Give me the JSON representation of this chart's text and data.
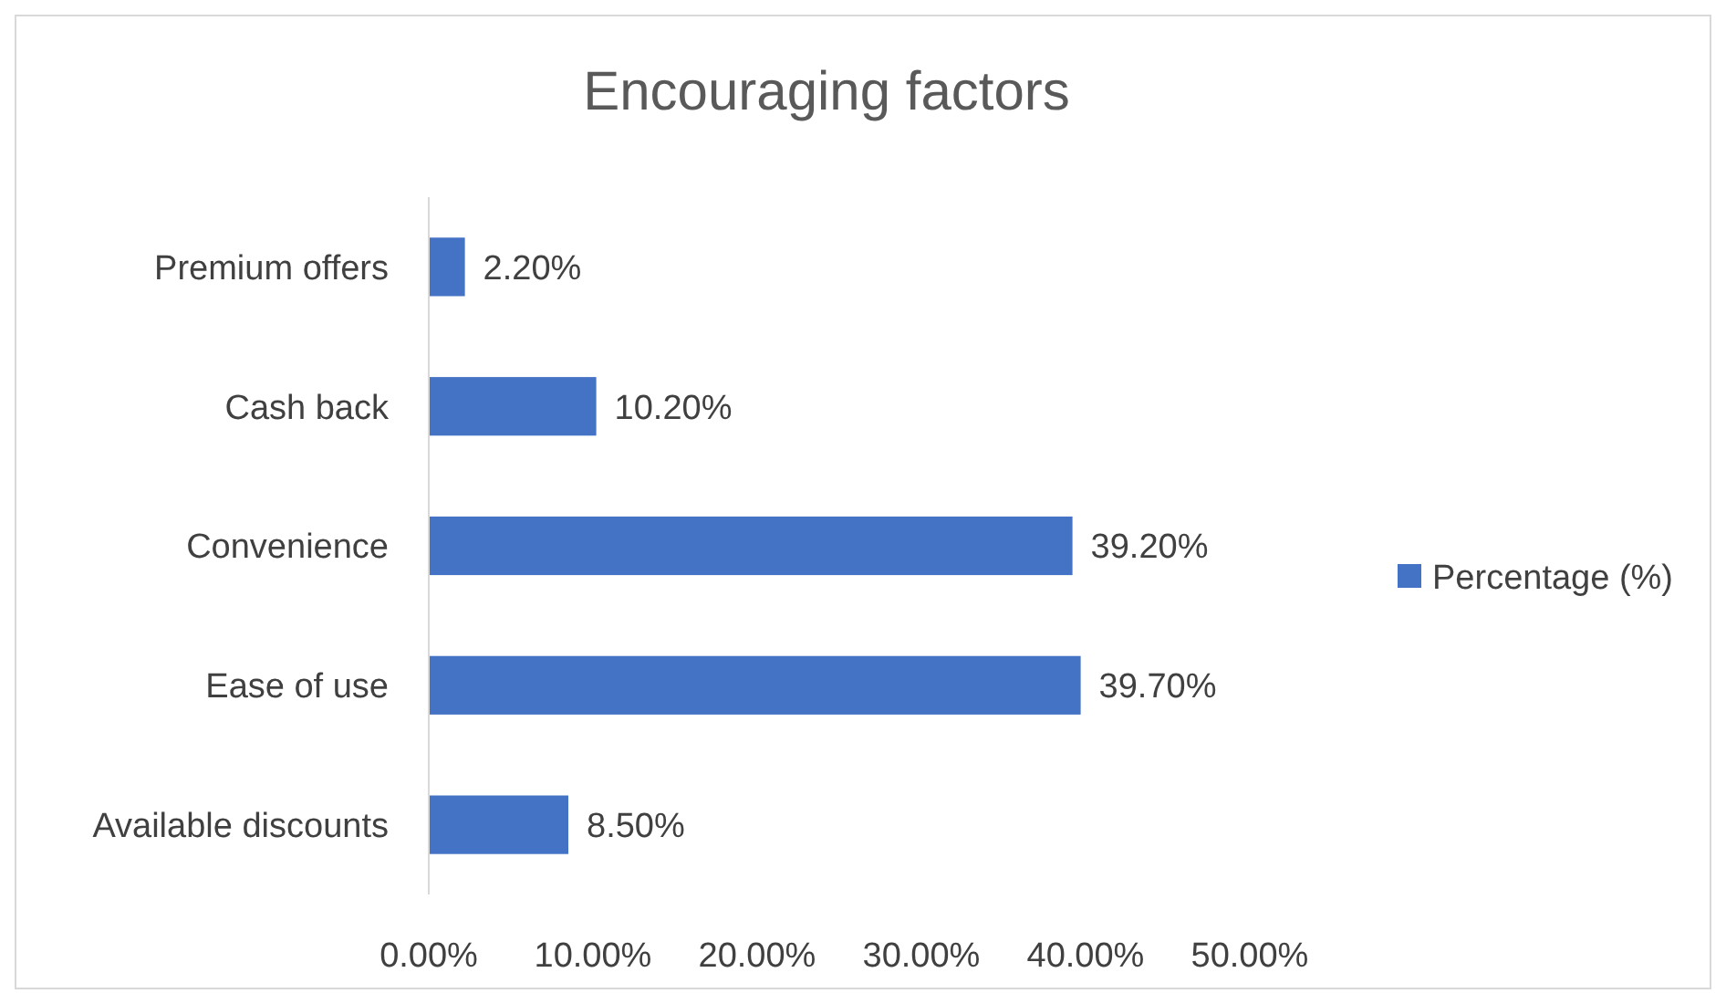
{
  "chart_data": {
    "type": "bar",
    "orientation": "horizontal",
    "title": "Encouraging factors",
    "categories": [
      "Premium offers",
      "Cash back",
      "Convenience",
      "Ease of use",
      "Available discounts"
    ],
    "series": [
      {
        "name": "Percentage (%)",
        "color": "#4472c4",
        "values": [
          2.2,
          10.2,
          39.2,
          39.7,
          8.5
        ],
        "value_labels": [
          "2.20%",
          "10.20%",
          "39.20%",
          "39.70%",
          "8.50%"
        ]
      }
    ],
    "xlim": [
      0,
      50
    ],
    "xticks": [
      {
        "value": 0,
        "label": "0.00%"
      },
      {
        "value": 10,
        "label": "10.00%"
      },
      {
        "value": 20,
        "label": "20.00%"
      },
      {
        "value": 30,
        "label": "30.00%"
      },
      {
        "value": 40,
        "label": "40.00%"
      },
      {
        "value": 50,
        "label": "50.00%"
      }
    ],
    "grid": false,
    "legend": "right"
  }
}
